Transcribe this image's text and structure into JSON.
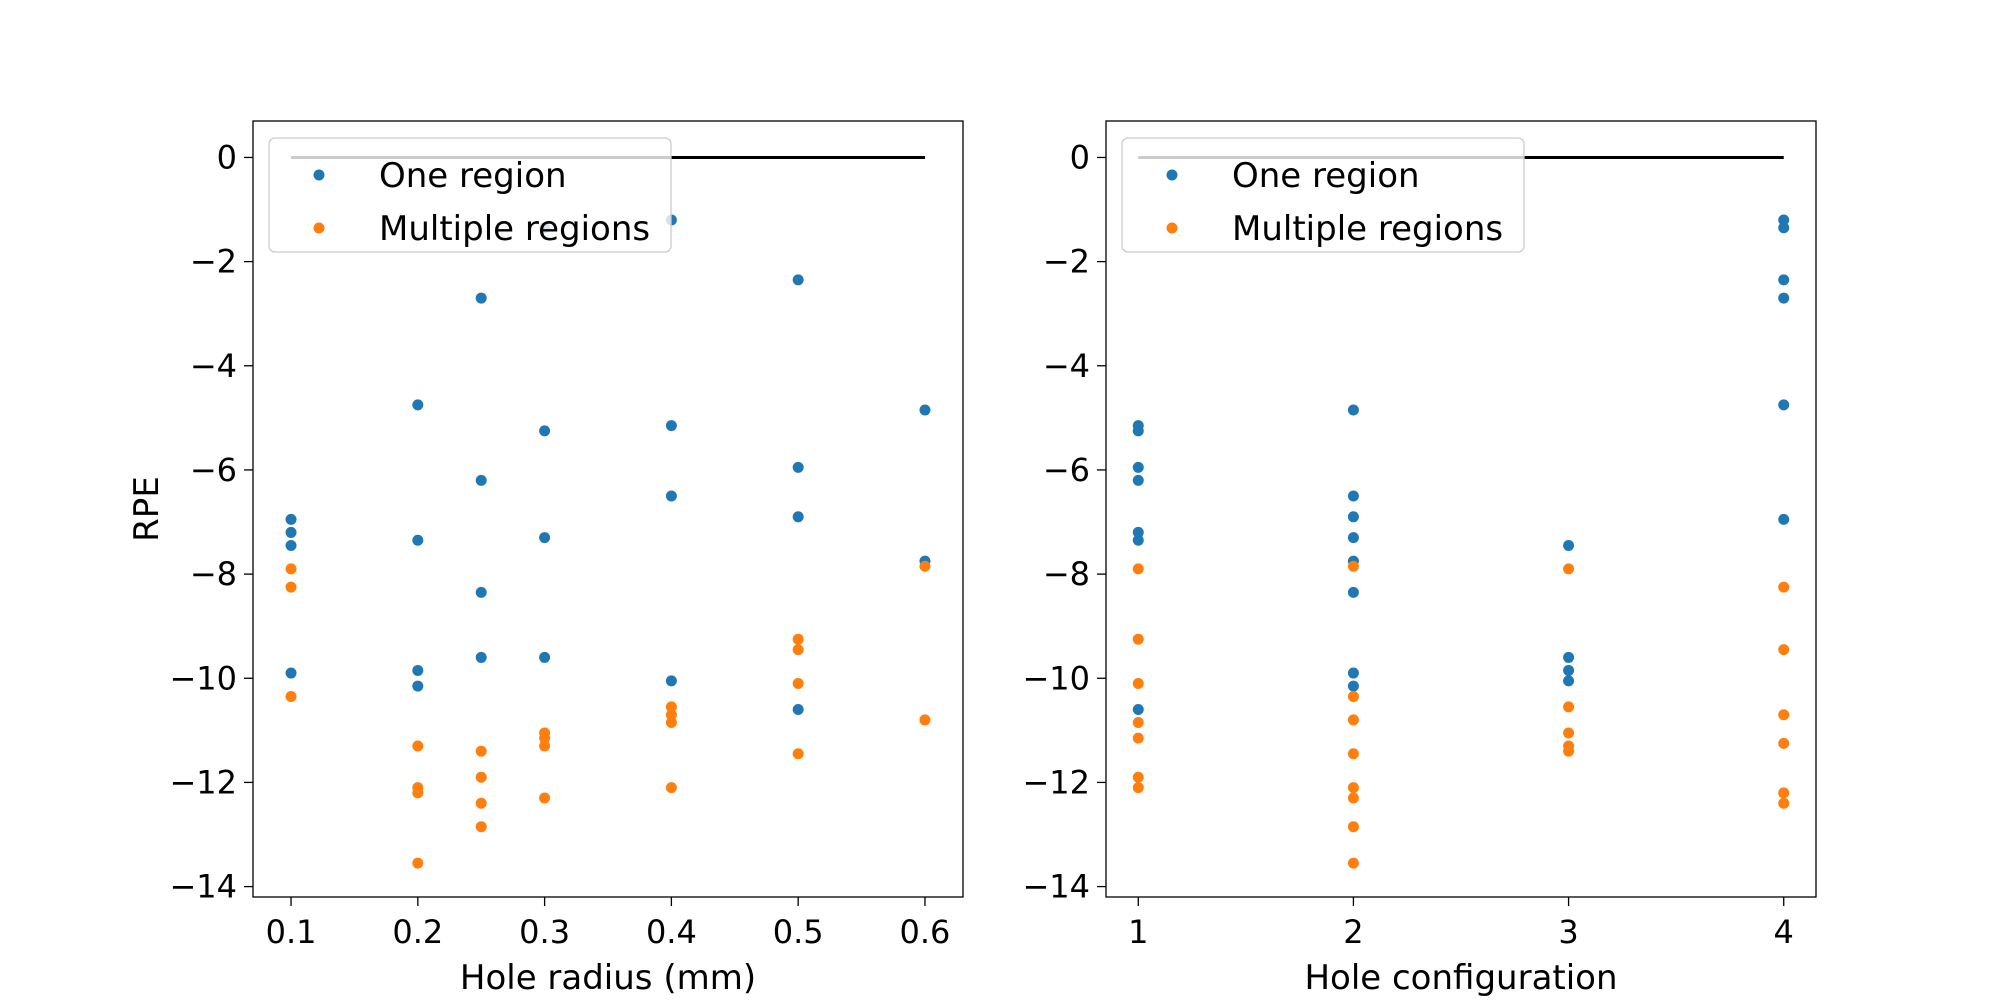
{
  "chart_data": [
    {
      "type": "scatter",
      "xlabel": "Hole radius (mm)",
      "ylabel": "RPE",
      "xlim": [
        0.07,
        0.63
      ],
      "ylim": [
        -14.2,
        0.7
      ],
      "xticks": [
        0.1,
        0.2,
        0.3,
        0.4,
        0.5,
        0.6
      ],
      "yticks": [
        0,
        -2,
        -4,
        -6,
        -8,
        -10,
        -12,
        -14
      ],
      "legend_position": "top-left",
      "reference_line": {
        "y": 0,
        "x_from": 0.1,
        "x_to": 0.6,
        "color": "#000000"
      },
      "series": [
        {
          "name": "One region",
          "color": "#1f77b4",
          "points": [
            [
              0.1,
              -6.95
            ],
            [
              0.1,
              -7.2
            ],
            [
              0.1,
              -7.45
            ],
            [
              0.1,
              -9.9
            ],
            [
              0.2,
              -4.75
            ],
            [
              0.2,
              -7.35
            ],
            [
              0.2,
              -9.85
            ],
            [
              0.2,
              -10.15
            ],
            [
              0.25,
              -2.7
            ],
            [
              0.25,
              -6.2
            ],
            [
              0.25,
              -8.35
            ],
            [
              0.25,
              -9.6
            ],
            [
              0.3,
              -1.35
            ],
            [
              0.3,
              -5.25
            ],
            [
              0.3,
              -7.3
            ],
            [
              0.3,
              -9.6
            ],
            [
              0.4,
              -1.2
            ],
            [
              0.4,
              -5.15
            ],
            [
              0.4,
              -6.5
            ],
            [
              0.4,
              -10.05
            ],
            [
              0.5,
              -2.35
            ],
            [
              0.5,
              -5.95
            ],
            [
              0.5,
              -6.9
            ],
            [
              0.5,
              -10.6
            ],
            [
              0.6,
              -4.85
            ],
            [
              0.6,
              -7.75
            ]
          ]
        },
        {
          "name": "Multiple regions",
          "color": "#ff7f0e",
          "points": [
            [
              0.1,
              -7.9
            ],
            [
              0.1,
              -8.25
            ],
            [
              0.1,
              -10.35
            ],
            [
              0.2,
              -11.3
            ],
            [
              0.2,
              -12.1
            ],
            [
              0.2,
              -12.2
            ],
            [
              0.2,
              -13.55
            ],
            [
              0.25,
              -11.4
            ],
            [
              0.25,
              -11.9
            ],
            [
              0.25,
              -12.4
            ],
            [
              0.25,
              -12.85
            ],
            [
              0.3,
              -11.05
            ],
            [
              0.3,
              -11.15
            ],
            [
              0.3,
              -11.3
            ],
            [
              0.3,
              -12.3
            ],
            [
              0.4,
              -10.55
            ],
            [
              0.4,
              -10.7
            ],
            [
              0.4,
              -10.85
            ],
            [
              0.4,
              -12.1
            ],
            [
              0.5,
              -9.25
            ],
            [
              0.5,
              -9.45
            ],
            [
              0.5,
              -10.1
            ],
            [
              0.5,
              -11.45
            ],
            [
              0.6,
              -7.85
            ],
            [
              0.6,
              -10.8
            ]
          ]
        }
      ]
    },
    {
      "type": "scatter",
      "xlabel": "Hole configuration",
      "ylabel": "",
      "xlim": [
        0.85,
        4.15
      ],
      "ylim": [
        -14.2,
        0.7
      ],
      "xticks": [
        1,
        2,
        3,
        4
      ],
      "yticks": [
        0,
        -2,
        -4,
        -6,
        -8,
        -10,
        -12,
        -14
      ],
      "legend_position": "top-left",
      "reference_line": {
        "y": 0,
        "x_from": 1,
        "x_to": 4,
        "color": "#000000"
      },
      "series": [
        {
          "name": "One region",
          "color": "#1f77b4",
          "points": [
            [
              1,
              -5.15
            ],
            [
              1,
              -5.25
            ],
            [
              1,
              -5.95
            ],
            [
              1,
              -6.2
            ],
            [
              1,
              -7.2
            ],
            [
              1,
              -7.35
            ],
            [
              1,
              -10.6
            ],
            [
              2,
              -4.85
            ],
            [
              2,
              -6.5
            ],
            [
              2,
              -6.9
            ],
            [
              2,
              -7.3
            ],
            [
              2,
              -7.75
            ],
            [
              2,
              -8.35
            ],
            [
              2,
              -9.9
            ],
            [
              2,
              -10.15
            ],
            [
              3,
              -7.45
            ],
            [
              3,
              -9.6
            ],
            [
              3,
              -9.85
            ],
            [
              3,
              -10.05
            ],
            [
              4,
              -1.2
            ],
            [
              4,
              -1.35
            ],
            [
              4,
              -2.35
            ],
            [
              4,
              -2.7
            ],
            [
              4,
              -4.75
            ],
            [
              4,
              -6.95
            ]
          ]
        },
        {
          "name": "Multiple regions",
          "color": "#ff7f0e",
          "points": [
            [
              1,
              -7.9
            ],
            [
              1,
              -9.25
            ],
            [
              1,
              -10.1
            ],
            [
              1,
              -10.85
            ],
            [
              1,
              -11.15
            ],
            [
              1,
              -11.9
            ],
            [
              1,
              -12.1
            ],
            [
              2,
              -7.85
            ],
            [
              2,
              -10.35
            ],
            [
              2,
              -10.8
            ],
            [
              2,
              -11.45
            ],
            [
              2,
              -12.1
            ],
            [
              2,
              -12.3
            ],
            [
              2,
              -12.85
            ],
            [
              2,
              -13.55
            ],
            [
              3,
              -7.9
            ],
            [
              3,
              -10.55
            ],
            [
              3,
              -11.05
            ],
            [
              3,
              -11.3
            ],
            [
              3,
              -11.4
            ],
            [
              4,
              -8.25
            ],
            [
              4,
              -9.45
            ],
            [
              4,
              -10.7
            ],
            [
              4,
              -11.25
            ],
            [
              4,
              -12.2
            ],
            [
              4,
              -12.4
            ]
          ]
        }
      ]
    }
  ]
}
